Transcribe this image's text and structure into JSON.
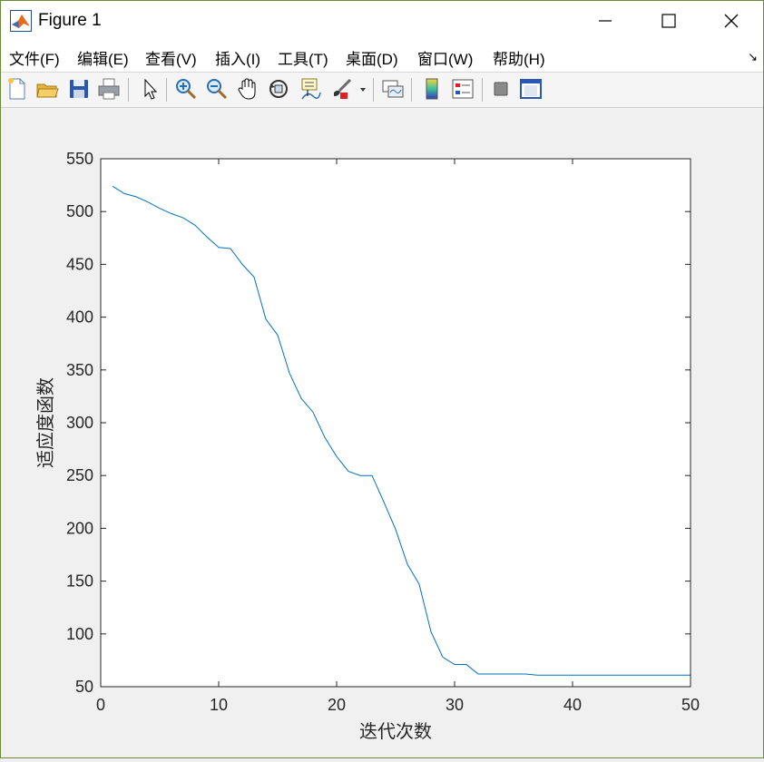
{
  "window": {
    "title": "Figure 1",
    "controls": [
      "minimize",
      "maximize",
      "close"
    ]
  },
  "menu": [
    {
      "label": "文件(F)"
    },
    {
      "label": "编辑(E)"
    },
    {
      "label": "查看(V)"
    },
    {
      "label": "插入(I)"
    },
    {
      "label": "工具(T)"
    },
    {
      "label": "桌面(D)"
    },
    {
      "label": "窗口(W)"
    },
    {
      "label": "帮助(H)"
    }
  ],
  "menu_overflow": "↘",
  "toolbar": [
    {
      "icon": "new-figure-icon"
    },
    {
      "icon": "open-file-icon"
    },
    {
      "icon": "save-icon"
    },
    {
      "icon": "print-icon"
    },
    {
      "icon": "edit-plot-arrow-icon"
    },
    {
      "icon": "zoom-in-icon"
    },
    {
      "icon": "zoom-out-icon"
    },
    {
      "icon": "pan-hand-icon"
    },
    {
      "icon": "rotate-3d-icon"
    },
    {
      "icon": "data-cursor-icon"
    },
    {
      "icon": "brush-icon"
    },
    {
      "icon": "link-plot-icon"
    },
    {
      "icon": "colorbar-icon"
    },
    {
      "icon": "legend-icon"
    },
    {
      "icon": "hide-plot-tools-icon"
    },
    {
      "icon": "show-plot-tools-icon"
    }
  ],
  "colors": {
    "line": "#0072bd",
    "axes_bg": "#ffffff",
    "figure_bg": "#f0f0f0",
    "border": "#6a8a3c"
  },
  "chart_data": {
    "type": "line",
    "title": "",
    "xlabel": "迭代次数",
    "ylabel": "适应度函数",
    "xlim": [
      0,
      50
    ],
    "ylim": [
      50,
      550
    ],
    "xticks": [
      0,
      10,
      20,
      30,
      40,
      50
    ],
    "yticks": [
      50,
      100,
      150,
      200,
      250,
      300,
      350,
      400,
      450,
      500,
      550
    ],
    "grid": false,
    "series": [
      {
        "x": [
          1,
          2,
          3,
          4,
          5,
          6,
          7,
          8,
          9,
          10,
          11,
          12,
          13,
          14,
          15,
          16,
          17,
          18,
          19,
          20,
          21,
          22,
          23,
          24,
          25,
          26,
          27,
          28,
          29,
          30,
          31,
          32,
          33,
          34,
          35,
          36,
          37,
          38,
          39,
          40,
          41,
          42,
          43,
          44,
          45,
          46,
          47,
          48,
          49,
          50
        ],
        "y": [
          524,
          517,
          514,
          509,
          503,
          498,
          494,
          487,
          476,
          466,
          465,
          450,
          438,
          398,
          383,
          347,
          323,
          310,
          286,
          268,
          254,
          250,
          250,
          225,
          199,
          166,
          147,
          102,
          78,
          71,
          71,
          62,
          62,
          62,
          62,
          62,
          61,
          61,
          61,
          61,
          61,
          61,
          61,
          61,
          61,
          61,
          61,
          61,
          61,
          61
        ]
      }
    ]
  }
}
